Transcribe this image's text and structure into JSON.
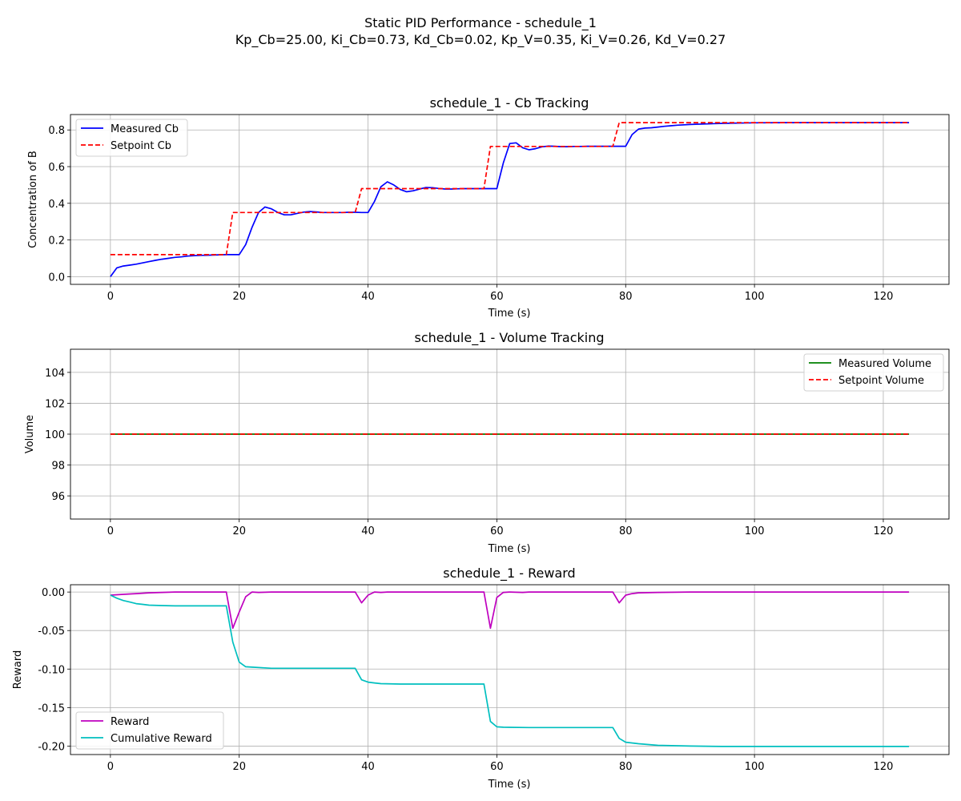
{
  "figure": {
    "suptitle_line1": "Static PID Performance - schedule_1",
    "suptitle_line2": "Kp_Cb=25.00, Ki_Cb=0.73, Kd_Cb=0.02, Kp_V=0.35, Ki_V=0.26, Kd_V=0.27"
  },
  "chart_data": [
    {
      "type": "line",
      "title": "schedule_1 - Cb Tracking",
      "xlabel": "Time (s)",
      "ylabel": "Concentration of B",
      "xlim": [
        -6.2,
        130.2
      ],
      "ylim": [
        -0.042,
        0.884
      ],
      "xticks": [
        0,
        20,
        40,
        60,
        80,
        100,
        120
      ],
      "yticks": [
        0.0,
        0.2,
        0.4,
        0.6,
        0.8
      ],
      "ytick_decimals": 1,
      "grid": true,
      "legend": "upper left",
      "series": [
        {
          "name": "Measured Cb",
          "color": "#0000ff",
          "dash": "solid",
          "points": [
            [
              0,
              0.0
            ],
            [
              1,
              0.048
            ],
            [
              2,
              0.058
            ],
            [
              3,
              0.063
            ],
            [
              4,
              0.068
            ],
            [
              5,
              0.075
            ],
            [
              6,
              0.082
            ],
            [
              7,
              0.089
            ],
            [
              8,
              0.095
            ],
            [
              9,
              0.1
            ],
            [
              10,
              0.105
            ],
            [
              11,
              0.108
            ],
            [
              12,
              0.112
            ],
            [
              13,
              0.115
            ],
            [
              14,
              0.116
            ],
            [
              15,
              0.117
            ],
            [
              16,
              0.118
            ],
            [
              17,
              0.119
            ],
            [
              18,
              0.12
            ],
            [
              19,
              0.12
            ],
            [
              20,
              0.12
            ],
            [
              21,
              0.175
            ],
            [
              22,
              0.27
            ],
            [
              23,
              0.35
            ],
            [
              24,
              0.38
            ],
            [
              25,
              0.37
            ],
            [
              26,
              0.35
            ],
            [
              27,
              0.337
            ],
            [
              28,
              0.337
            ],
            [
              29,
              0.345
            ],
            [
              30,
              0.352
            ],
            [
              31,
              0.355
            ],
            [
              32,
              0.353
            ],
            [
              33,
              0.35
            ],
            [
              34,
              0.35
            ],
            [
              35,
              0.35
            ],
            [
              36,
              0.35
            ],
            [
              37,
              0.351
            ],
            [
              38,
              0.351
            ],
            [
              39,
              0.35
            ],
            [
              40,
              0.35
            ],
            [
              41,
              0.41
            ],
            [
              42,
              0.49
            ],
            [
              43,
              0.517
            ],
            [
              44,
              0.5
            ],
            [
              45,
              0.475
            ],
            [
              46,
              0.463
            ],
            [
              47,
              0.468
            ],
            [
              48,
              0.478
            ],
            [
              49,
              0.486
            ],
            [
              50,
              0.485
            ],
            [
              51,
              0.481
            ],
            [
              52,
              0.478
            ],
            [
              53,
              0.478
            ],
            [
              54,
              0.479
            ],
            [
              55,
              0.48
            ],
            [
              56,
              0.48
            ],
            [
              57,
              0.48
            ],
            [
              58,
              0.48
            ],
            [
              59,
              0.48
            ],
            [
              60,
              0.48
            ],
            [
              61,
              0.62
            ],
            [
              62,
              0.726
            ],
            [
              63,
              0.73
            ],
            [
              64,
              0.703
            ],
            [
              65,
              0.692
            ],
            [
              66,
              0.698
            ],
            [
              67,
              0.708
            ],
            [
              68,
              0.712
            ],
            [
              69,
              0.711
            ],
            [
              70,
              0.709
            ],
            [
              71,
              0.709
            ],
            [
              72,
              0.71
            ],
            [
              73,
              0.71
            ],
            [
              74,
              0.711
            ],
            [
              75,
              0.711
            ],
            [
              76,
              0.711
            ],
            [
              77,
              0.711
            ],
            [
              78,
              0.711
            ],
            [
              79,
              0.711
            ],
            [
              80,
              0.711
            ],
            [
              81,
              0.775
            ],
            [
              82,
              0.805
            ],
            [
              83,
              0.81
            ],
            [
              84,
              0.812
            ],
            [
              85,
              0.816
            ],
            [
              86,
              0.82
            ],
            [
              87,
              0.823
            ],
            [
              88,
              0.826
            ],
            [
              90,
              0.83
            ],
            [
              95,
              0.836
            ],
            [
              100,
              0.839
            ],
            [
              105,
              0.84
            ],
            [
              110,
              0.84
            ],
            [
              115,
              0.84
            ],
            [
              120,
              0.84
            ],
            [
              124,
              0.84
            ]
          ]
        },
        {
          "name": "Setpoint Cb",
          "color": "#ff0000",
          "dash": "dashed",
          "points": [
            [
              0,
              0.12
            ],
            [
              18,
              0.12
            ],
            [
              19,
              0.35
            ],
            [
              38,
              0.35
            ],
            [
              39,
              0.48
            ],
            [
              58,
              0.48
            ],
            [
              59,
              0.71
            ],
            [
              78,
              0.71
            ],
            [
              79,
              0.84
            ],
            [
              124,
              0.84
            ]
          ]
        }
      ]
    },
    {
      "type": "line",
      "title": "schedule_1 - Volume Tracking",
      "xlabel": "Time (s)",
      "ylabel": "Volume",
      "xlim": [
        -6.2,
        130.2
      ],
      "ylim": [
        94.5,
        105.5
      ],
      "xticks": [
        0,
        20,
        40,
        60,
        80,
        100,
        120
      ],
      "yticks": [
        96,
        98,
        100,
        102,
        104
      ],
      "ytick_decimals": 0,
      "grid": true,
      "legend": "upper right",
      "series": [
        {
          "name": "Measured Volume",
          "color": "#008000",
          "dash": "solid",
          "points": [
            [
              0,
              100
            ],
            [
              124,
              100
            ]
          ]
        },
        {
          "name": "Setpoint Volume",
          "color": "#ff0000",
          "dash": "dashed",
          "points": [
            [
              0,
              100
            ],
            [
              124,
              100
            ]
          ]
        }
      ]
    },
    {
      "type": "line",
      "title": "schedule_1 - Reward",
      "xlabel": "Time (s)",
      "ylabel": "Reward",
      "xlim": [
        -6.2,
        130.2
      ],
      "ylim": [
        -0.211,
        0.0095
      ],
      "xticks": [
        0,
        20,
        40,
        60,
        80,
        100,
        120
      ],
      "yticks": [
        0.0,
        -0.05,
        -0.1,
        -0.15,
        -0.2
      ],
      "ytick_decimals": 2,
      "grid": true,
      "legend": "lower left",
      "series": [
        {
          "name": "Reward",
          "color": "#bf00bf",
          "dash": "solid",
          "points": [
            [
              0,
              -0.004
            ],
            [
              2,
              -0.003
            ],
            [
              4,
              -0.002
            ],
            [
              6,
              -0.001
            ],
            [
              8,
              -0.0005
            ],
            [
              10,
              0.0
            ],
            [
              18,
              0.0
            ],
            [
              19,
              -0.047
            ],
            [
              20,
              -0.026
            ],
            [
              21,
              -0.006
            ],
            [
              22,
              0.0
            ],
            [
              23,
              -0.0005
            ],
            [
              25,
              0.0
            ],
            [
              38,
              0.0
            ],
            [
              39,
              -0.014
            ],
            [
              40,
              -0.004
            ],
            [
              41,
              0.0
            ],
            [
              42,
              -0.0005
            ],
            [
              43,
              0.0
            ],
            [
              58,
              0.0
            ],
            [
              59,
              -0.047
            ],
            [
              60,
              -0.007
            ],
            [
              61,
              -0.0005
            ],
            [
              62,
              0.0
            ],
            [
              64,
              -0.0005
            ],
            [
              65,
              0.0
            ],
            [
              78,
              0.0
            ],
            [
              79,
              -0.014
            ],
            [
              80,
              -0.004
            ],
            [
              81,
              -0.002
            ],
            [
              82,
              -0.001
            ],
            [
              85,
              -0.0005
            ],
            [
              90,
              0.0
            ],
            [
              124,
              0.0
            ]
          ]
        },
        {
          "name": "Cumulative Reward",
          "color": "#00bfbf",
          "dash": "solid",
          "points": [
            [
              0,
              -0.004
            ],
            [
              1,
              -0.008
            ],
            [
              2,
              -0.011
            ],
            [
              3,
              -0.013
            ],
            [
              4,
              -0.015
            ],
            [
              5,
              -0.016
            ],
            [
              6,
              -0.017
            ],
            [
              8,
              -0.0175
            ],
            [
              10,
              -0.018
            ],
            [
              18,
              -0.018
            ],
            [
              19,
              -0.065
            ],
            [
              20,
              -0.091
            ],
            [
              21,
              -0.097
            ],
            [
              22,
              -0.0975
            ],
            [
              25,
              -0.099
            ],
            [
              38,
              -0.099
            ],
            [
              39,
              -0.114
            ],
            [
              40,
              -0.117
            ],
            [
              41,
              -0.118
            ],
            [
              42,
              -0.119
            ],
            [
              45,
              -0.1195
            ],
            [
              58,
              -0.1195
            ],
            [
              59,
              -0.168
            ],
            [
              60,
              -0.175
            ],
            [
              61,
              -0.1755
            ],
            [
              65,
              -0.176
            ],
            [
              78,
              -0.176
            ],
            [
              79,
              -0.19
            ],
            [
              80,
              -0.195
            ],
            [
              82,
              -0.197
            ],
            [
              85,
              -0.199
            ],
            [
              90,
              -0.2
            ],
            [
              95,
              -0.2005
            ],
            [
              124,
              -0.2005
            ]
          ]
        }
      ]
    }
  ]
}
